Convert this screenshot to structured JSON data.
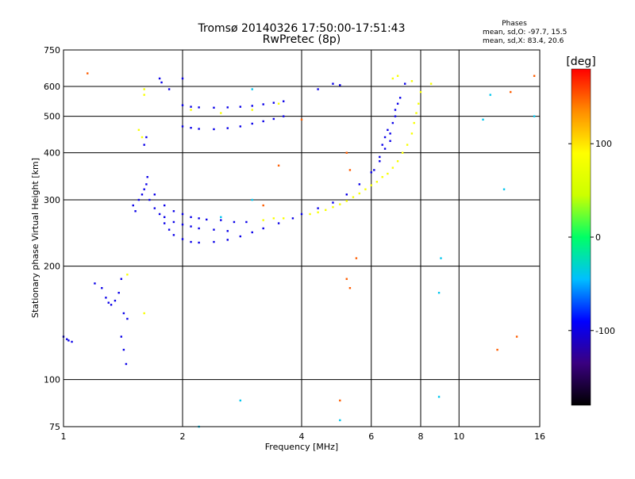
{
  "chart_data": {
    "type": "scatter",
    "title": "Tromsø 20140326 17:50:00-17:51:43",
    "subtitle": "RwPretec (8p)",
    "xlabel": "Frequency [MHz]",
    "ylabel": "Stationary phase Virtual Height [km]",
    "x_scale": "log",
    "y_scale": "log",
    "xlim": [
      1,
      16
    ],
    "ylim": [
      75,
      750
    ],
    "x_ticks": [
      "1",
      "2",
      "4",
      "6",
      "8",
      "10",
      "16"
    ],
    "x_tick_values": [
      1,
      2,
      4,
      6,
      8,
      10,
      16
    ],
    "y_ticks": [
      "750",
      "600",
      "500",
      "400",
      "300",
      "200",
      "100",
      "75"
    ],
    "y_tick_values": [
      750,
      600,
      500,
      400,
      300,
      200,
      100,
      75
    ],
    "grid": true,
    "phase_stats": {
      "heading": "Phases",
      "line_o": "mean, sd,O: -97.7, 15.5",
      "line_x": "mean, sd,X:  83.4, 20.6"
    },
    "colorbar": {
      "label": "[deg]",
      "range": [
        -180,
        180
      ],
      "ticks": [
        "100",
        "0",
        "-100"
      ],
      "tick_values": [
        100,
        0,
        -100
      ],
      "colors": [
        "#000000",
        "#3a0080",
        "#0000ff",
        "#00bfff",
        "#00ff66",
        "#ccff00",
        "#ffff00",
        "#ff8c00",
        "#ff0000"
      ]
    },
    "series": [
      {
        "name": "O-mode",
        "phase": -97.7,
        "points": [
          [
            1.0,
            130
          ],
          [
            1.02,
            128
          ],
          [
            1.03,
            127
          ],
          [
            1.05,
            126
          ],
          [
            1.2,
            180
          ],
          [
            1.25,
            175
          ],
          [
            1.28,
            165
          ],
          [
            1.3,
            160
          ],
          [
            1.32,
            158
          ],
          [
            1.35,
            162
          ],
          [
            1.38,
            170
          ],
          [
            1.4,
            185
          ],
          [
            1.42,
            150
          ],
          [
            1.45,
            145
          ],
          [
            1.5,
            290
          ],
          [
            1.52,
            280
          ],
          [
            1.55,
            300
          ],
          [
            1.58,
            310
          ],
          [
            1.6,
            320
          ],
          [
            1.62,
            330
          ],
          [
            1.63,
            345
          ],
          [
            1.6,
            420
          ],
          [
            1.62,
            440
          ],
          [
            1.65,
            300
          ],
          [
            1.7,
            285
          ],
          [
            1.75,
            275
          ],
          [
            1.8,
            260
          ],
          [
            1.85,
            250
          ],
          [
            1.9,
            242
          ],
          [
            2.0,
            236
          ],
          [
            2.1,
            232
          ],
          [
            2.2,
            231
          ],
          [
            2.4,
            232
          ],
          [
            2.6,
            235
          ],
          [
            2.8,
            240
          ],
          [
            3.0,
            246
          ],
          [
            3.2,
            252
          ],
          [
            3.5,
            260
          ],
          [
            3.8,
            268
          ],
          [
            4.0,
            275
          ],
          [
            4.4,
            285
          ],
          [
            4.8,
            295
          ],
          [
            5.2,
            310
          ],
          [
            5.6,
            330
          ],
          [
            6.0,
            355
          ],
          [
            6.3,
            380
          ],
          [
            6.5,
            410
          ],
          [
            6.7,
            450
          ],
          [
            6.9,
            500
          ],
          [
            7.1,
            560
          ],
          [
            7.3,
            610
          ],
          [
            1.7,
            310
          ],
          [
            1.8,
            290
          ],
          [
            1.9,
            280
          ],
          [
            2.0,
            275
          ],
          [
            2.1,
            270
          ],
          [
            2.2,
            268
          ],
          [
            2.3,
            266
          ],
          [
            2.5,
            265
          ],
          [
            2.7,
            262
          ],
          [
            2.9,
            262
          ],
          [
            1.8,
            270
          ],
          [
            1.9,
            262
          ],
          [
            2.0,
            258
          ],
          [
            2.1,
            255
          ],
          [
            2.2,
            252
          ],
          [
            2.4,
            250
          ],
          [
            2.6,
            248
          ],
          [
            2.0,
            470
          ],
          [
            2.1,
            466
          ],
          [
            2.2,
            463
          ],
          [
            2.4,
            462
          ],
          [
            2.6,
            465
          ],
          [
            2.8,
            470
          ],
          [
            3.0,
            478
          ],
          [
            3.2,
            485
          ],
          [
            3.4,
            492
          ],
          [
            3.6,
            500
          ],
          [
            2.0,
            535
          ],
          [
            2.1,
            530
          ],
          [
            2.2,
            528
          ],
          [
            2.4,
            527
          ],
          [
            2.6,
            528
          ],
          [
            2.8,
            530
          ],
          [
            3.0,
            533
          ],
          [
            3.2,
            538
          ],
          [
            3.4,
            543
          ],
          [
            3.6,
            548
          ],
          [
            1.75,
            630
          ],
          [
            1.77,
            615
          ],
          [
            4.4,
            590
          ],
          [
            4.8,
            610
          ],
          [
            5.0,
            605
          ],
          [
            6.1,
            360
          ],
          [
            6.3,
            390
          ],
          [
            6.4,
            420
          ],
          [
            6.5,
            440
          ],
          [
            6.6,
            460
          ],
          [
            6.7,
            430
          ],
          [
            6.8,
            480
          ],
          [
            6.9,
            520
          ],
          [
            7.0,
            540
          ],
          [
            1.4,
            130
          ],
          [
            1.42,
            120
          ],
          [
            1.44,
            110
          ],
          [
            2.0,
            630
          ],
          [
            1.85,
            590
          ]
        ]
      },
      {
        "name": "X-mode",
        "phase": 83.4,
        "points": [
          [
            3.2,
            265
          ],
          [
            3.4,
            268
          ],
          [
            3.6,
            268
          ],
          [
            4.2,
            275
          ],
          [
            4.4,
            278
          ],
          [
            4.6,
            282
          ],
          [
            4.8,
            287
          ],
          [
            5.0,
            292
          ],
          [
            5.2,
            298
          ],
          [
            5.4,
            305
          ],
          [
            5.6,
            312
          ],
          [
            5.8,
            320
          ],
          [
            6.0,
            328
          ],
          [
            6.2,
            335
          ],
          [
            6.4,
            345
          ],
          [
            6.6,
            352
          ],
          [
            6.8,
            365
          ],
          [
            7.0,
            380
          ],
          [
            7.2,
            400
          ],
          [
            7.4,
            420
          ],
          [
            7.6,
            450
          ],
          [
            7.7,
            480
          ],
          [
            7.8,
            510
          ],
          [
            7.9,
            540
          ],
          [
            8.0,
            580
          ],
          [
            1.6,
            590
          ],
          [
            1.6,
            570
          ],
          [
            2.1,
            520
          ],
          [
            2.5,
            510
          ],
          [
            3.0,
            520
          ],
          [
            3.5,
            540
          ],
          [
            6.8,
            630
          ],
          [
            7.0,
            640
          ],
          [
            7.6,
            620
          ],
          [
            8.5,
            610
          ],
          [
            1.55,
            460
          ],
          [
            1.58,
            440
          ],
          [
            1.6,
            150
          ],
          [
            1.45,
            190
          ]
        ]
      },
      {
        "name": "scatter",
        "phase": 150,
        "points": [
          [
            1.15,
            650
          ],
          [
            5.0,
            88
          ],
          [
            5.2,
            400
          ],
          [
            5.3,
            360
          ],
          [
            5.2,
            185
          ],
          [
            5.3,
            175
          ],
          [
            5.5,
            210
          ],
          [
            13.5,
            580
          ],
          [
            15.5,
            640
          ],
          [
            14.0,
            130
          ],
          [
            12.5,
            120
          ],
          [
            3.2,
            290
          ],
          [
            3.5,
            370
          ],
          [
            4.0,
            490
          ]
        ]
      },
      {
        "name": "scatter-cyan",
        "phase": -40,
        "points": [
          [
            2.5,
            270
          ],
          [
            3.0,
            300
          ],
          [
            5.0,
            78
          ],
          [
            8.9,
            90
          ],
          [
            8.9,
            170
          ],
          [
            9.0,
            210
          ],
          [
            11.5,
            490
          ],
          [
            13.0,
            320
          ],
          [
            15.5,
            500
          ],
          [
            2.2,
            75
          ],
          [
            2.8,
            88
          ],
          [
            3.0,
            590
          ],
          [
            12.0,
            570
          ]
        ]
      }
    ]
  }
}
